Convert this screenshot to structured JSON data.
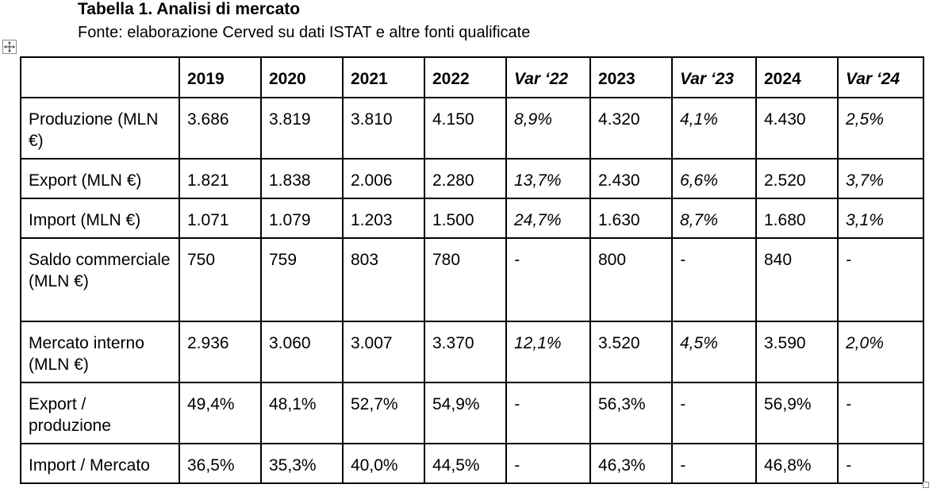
{
  "caption": {
    "title": "Tabella 1. Analisi di mercato",
    "source": "Fonte: elaborazione Cerved su dati ISTAT e altre fonti qualificate"
  },
  "table": {
    "headers": [
      "",
      "2019",
      "2020",
      "2021",
      "2022",
      "Var ‘22",
      "2023",
      "Var ‘23",
      "2024",
      "Var ‘24"
    ],
    "rows": [
      {
        "label": "Produzione (MLN €)",
        "values": [
          "3.686",
          "3.819",
          "3.810",
          "4.150",
          "8,9%",
          "4.320",
          "4,1%",
          "4.430",
          "2,5%"
        ]
      },
      {
        "label": "Export (MLN €)",
        "values": [
          "1.821",
          "1.838",
          "2.006",
          "2.280",
          "13,7%",
          "2.430",
          "6,6%",
          "2.520",
          "3,7%"
        ]
      },
      {
        "label": "Import (MLN €)",
        "values": [
          "1.071",
          "1.079",
          "1.203",
          "1.500",
          "24,7%",
          "1.630",
          "8,7%",
          "1.680",
          "3,1%"
        ]
      },
      {
        "label": "Saldo commerciale (MLN €)",
        "values": [
          "750",
          "759",
          "803",
          "780",
          "-",
          "800",
          "-",
          "840",
          "-"
        ]
      },
      {
        "label": "Mercato interno (MLN €)",
        "values": [
          "2.936",
          "3.060",
          "3.007",
          "3.370",
          "12,1%",
          "3.520",
          "4,5%",
          "3.590",
          "2,0%"
        ]
      },
      {
        "label": "Export / produzione",
        "values": [
          "49,4%",
          "48,1%",
          "52,7%",
          "54,9%",
          "-",
          "56,3%",
          "-",
          "56,9%",
          "-"
        ]
      },
      {
        "label": "Import / Mercato",
        "values": [
          "36,5%",
          "35,3%",
          "40,0%",
          "44,5%",
          "-",
          "46,3%",
          "-",
          "46,8%",
          "-"
        ]
      }
    ]
  },
  "icons": {
    "move_handle": "four-way-arrow-icon",
    "resize_handle": "resize-square-icon"
  }
}
